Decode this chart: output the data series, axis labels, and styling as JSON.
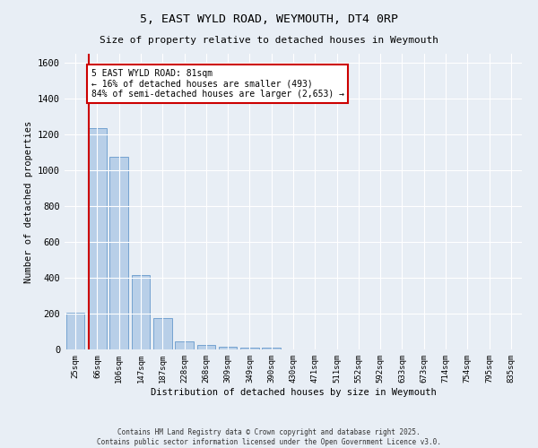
{
  "title": "5, EAST WYLD ROAD, WEYMOUTH, DT4 0RP",
  "subtitle": "Size of property relative to detached houses in Weymouth",
  "xlabel": "Distribution of detached houses by size in Weymouth",
  "ylabel": "Number of detached properties",
  "categories": [
    "25sqm",
    "66sqm",
    "106sqm",
    "147sqm",
    "187sqm",
    "228sqm",
    "268sqm",
    "309sqm",
    "349sqm",
    "390sqm",
    "430sqm",
    "471sqm",
    "511sqm",
    "552sqm",
    "592sqm",
    "633sqm",
    "673sqm",
    "714sqm",
    "754sqm",
    "795sqm",
    "835sqm"
  ],
  "values": [
    205,
    1235,
    1075,
    415,
    175,
    47,
    25,
    13,
    12,
    10,
    0,
    0,
    0,
    0,
    0,
    0,
    0,
    0,
    0,
    0,
    0
  ],
  "bar_color": "#b8cfe8",
  "bar_edgecolor": "#6699cc",
  "property_line_x": 0.62,
  "property_line_color": "#cc0000",
  "annotation_text": "5 EAST WYLD ROAD: 81sqm\n← 16% of detached houses are smaller (493)\n84% of semi-detached houses are larger (2,653) →",
  "annotation_box_color": "#cc0000",
  "ylim": [
    0,
    1650
  ],
  "yticks": [
    0,
    200,
    400,
    600,
    800,
    1000,
    1200,
    1400,
    1600
  ],
  "bg_color": "#e8eef5",
  "plot_bg_color": "#e8eef5",
  "grid_color": "#ffffff",
  "footer_line1": "Contains HM Land Registry data © Crown copyright and database right 2025.",
  "footer_line2": "Contains public sector information licensed under the Open Government Licence v3.0."
}
